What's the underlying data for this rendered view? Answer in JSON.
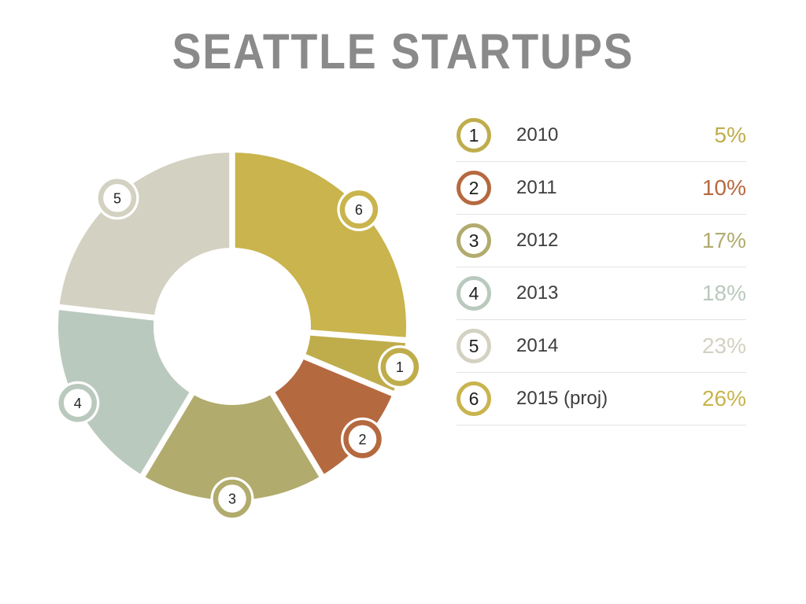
{
  "title": "SEATTLE STARTUPS",
  "title_color": "#8a8a8a",
  "chart_data": {
    "type": "pie",
    "variant": "donut",
    "title": "Seattle Startups",
    "categories": [
      "2010",
      "2011",
      "2012",
      "2013",
      "2014",
      "2015 (proj)"
    ],
    "values": [
      5,
      10,
      17,
      18,
      23,
      26
    ],
    "unit": "%",
    "labels": [
      "1",
      "2",
      "3",
      "4",
      "5",
      "6"
    ],
    "colors": [
      "#bfad4c",
      "#b5693f",
      "#b1ab6d",
      "#bac9bd",
      "#d3d1c1",
      "#c9b44d"
    ],
    "clockwise_order_from_top": [
      6,
      1,
      2,
      3,
      4,
      5
    ],
    "legend_position": "right",
    "hole_ratio": 0.45,
    "gap_color": "#ffffff",
    "badge_number_color": "#222222"
  },
  "legend": {
    "rows": [
      {
        "index": "1",
        "label": "2010",
        "value": "5%"
      },
      {
        "index": "2",
        "label": "2011",
        "value": "10%"
      },
      {
        "index": "3",
        "label": "2012",
        "value": "17%"
      },
      {
        "index": "4",
        "label": "2013",
        "value": "18%"
      },
      {
        "index": "5",
        "label": "2014",
        "value": "23%"
      },
      {
        "index": "6",
        "label": "2015 (proj)",
        "value": "26%"
      }
    ]
  }
}
